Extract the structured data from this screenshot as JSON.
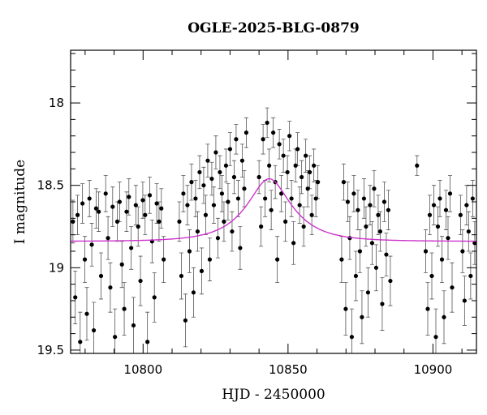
{
  "chart_data": {
    "type": "scatter",
    "title": "OGLE-2025-BLG-0879",
    "xlabel": "HJD - 2450000",
    "ylabel": "I magnitude",
    "xlim": [
      10775,
      10915
    ],
    "ylim": [
      19.52,
      17.68
    ],
    "y_inverted": true,
    "x_ticks": [
      10800,
      10850,
      10900
    ],
    "x_tick_labels": [
      "10800",
      "10850",
      "10900"
    ],
    "y_ticks": [
      18,
      18.5,
      19,
      19.5
    ],
    "y_tick_labels": [
      "18",
      "18.5",
      "19",
      "19.5"
    ],
    "grid": false,
    "legend": "none",
    "colors": {
      "points": "#000000",
      "model": "#cc33cc",
      "errorbars": "#555555"
    },
    "series": [
      {
        "type": "scatter-errorbars",
        "points": [
          [
            10775.8,
            18.72,
            0.13
          ],
          [
            10776.6,
            19.18,
            0.16
          ],
          [
            10777.4,
            18.68,
            0.12
          ],
          [
            10778.3,
            19.45,
            0.18
          ],
          [
            10779.1,
            18.61,
            0.12
          ],
          [
            10779.9,
            18.95,
            0.14
          ],
          [
            10780.6,
            19.28,
            0.16
          ],
          [
            10781.5,
            18.58,
            0.11
          ],
          [
            10782.3,
            18.86,
            0.13
          ],
          [
            10783.0,
            19.38,
            0.17
          ],
          [
            10783.8,
            18.64,
            0.12
          ],
          [
            10784.7,
            18.66,
            0.12
          ],
          [
            10785.5,
            19.05,
            0.14
          ],
          [
            10787.1,
            18.55,
            0.11
          ],
          [
            10787.9,
            18.82,
            0.13
          ],
          [
            10788.7,
            19.12,
            0.15
          ],
          [
            10789.5,
            18.63,
            0.12
          ],
          [
            10790.3,
            19.42,
            0.17
          ],
          [
            10791.1,
            18.72,
            0.12
          ],
          [
            10791.9,
            18.6,
            0.12
          ],
          [
            10792.7,
            18.98,
            0.14
          ],
          [
            10793.5,
            19.25,
            0.16
          ],
          [
            10794.3,
            18.66,
            0.12
          ],
          [
            10795.1,
            18.57,
            0.11
          ],
          [
            10795.9,
            18.88,
            0.13
          ],
          [
            10796.7,
            19.35,
            0.17
          ],
          [
            10797.5,
            18.62,
            0.12
          ],
          [
            10798.3,
            18.75,
            0.12
          ],
          [
            10799.1,
            19.08,
            0.15
          ],
          [
            10799.9,
            18.59,
            0.11
          ],
          [
            10800.7,
            18.68,
            0.12
          ],
          [
            10801.5,
            19.45,
            0.18
          ],
          [
            10802.3,
            18.56,
            0.11
          ],
          [
            10803.1,
            18.84,
            0.13
          ],
          [
            10803.9,
            19.18,
            0.15
          ],
          [
            10804.7,
            18.61,
            0.12
          ],
          [
            10805.5,
            18.72,
            0.12
          ],
          [
            10806.3,
            18.64,
            0.12
          ],
          [
            10807.1,
            18.95,
            0.14
          ],
          [
            10812.5,
            18.72,
            0.12
          ],
          [
            10813.2,
            19.05,
            0.14
          ],
          [
            10813.9,
            18.55,
            0.11
          ],
          [
            10814.6,
            19.32,
            0.16
          ],
          [
            10815.3,
            18.62,
            0.12
          ],
          [
            10816.0,
            18.9,
            0.13
          ],
          [
            10816.7,
            18.48,
            0.11
          ],
          [
            10817.4,
            19.15,
            0.15
          ],
          [
            10818.1,
            18.58,
            0.11
          ],
          [
            10818.8,
            18.78,
            0.12
          ],
          [
            10819.5,
            18.42,
            0.1
          ],
          [
            10820.2,
            19.02,
            0.14
          ],
          [
            10820.9,
            18.5,
            0.11
          ],
          [
            10821.6,
            18.68,
            0.12
          ],
          [
            10822.3,
            18.35,
            0.1
          ],
          [
            10823.0,
            18.95,
            0.13
          ],
          [
            10823.7,
            18.46,
            0.1
          ],
          [
            10824.4,
            18.62,
            0.11
          ],
          [
            10825.1,
            18.3,
            0.1
          ],
          [
            10825.8,
            18.82,
            0.12
          ],
          [
            10826.5,
            18.42,
            0.1
          ],
          [
            10827.2,
            18.55,
            0.11
          ],
          [
            10827.9,
            18.72,
            0.12
          ],
          [
            10828.6,
            18.38,
            0.1
          ],
          [
            10829.3,
            18.6,
            0.11
          ],
          [
            10830.0,
            18.28,
            0.1
          ],
          [
            10830.7,
            18.78,
            0.12
          ],
          [
            10831.4,
            18.45,
            0.1
          ],
          [
            10832.1,
            18.22,
            0.09
          ],
          [
            10832.8,
            18.58,
            0.11
          ],
          [
            10833.5,
            18.88,
            0.13
          ],
          [
            10834.2,
            18.35,
            0.1
          ],
          [
            10834.9,
            18.52,
            0.11
          ],
          [
            10835.6,
            18.18,
            0.09
          ],
          [
            10840.0,
            18.45,
            0.1
          ],
          [
            10840.7,
            18.75,
            0.12
          ],
          [
            10841.4,
            18.22,
            0.09
          ],
          [
            10842.1,
            18.58,
            0.11
          ],
          [
            10842.8,
            18.12,
            0.09
          ],
          [
            10843.5,
            18.38,
            0.1
          ],
          [
            10844.2,
            18.65,
            0.12
          ],
          [
            10844.9,
            18.18,
            0.09
          ],
          [
            10845.6,
            18.48,
            0.1
          ],
          [
            10846.3,
            18.95,
            0.14
          ],
          [
            10847.0,
            18.25,
            0.09
          ],
          [
            10847.7,
            18.55,
            0.11
          ],
          [
            10848.4,
            18.32,
            0.1
          ],
          [
            10849.1,
            18.72,
            0.12
          ],
          [
            10849.8,
            18.42,
            0.1
          ],
          [
            10850.5,
            18.2,
            0.09
          ],
          [
            10851.2,
            18.58,
            0.11
          ],
          [
            10851.9,
            18.85,
            0.13
          ],
          [
            10852.6,
            18.38,
            0.1
          ],
          [
            10853.3,
            18.28,
            0.1
          ],
          [
            10854.0,
            18.62,
            0.11
          ],
          [
            10854.7,
            18.45,
            0.1
          ],
          [
            10855.4,
            18.75,
            0.12
          ],
          [
            10856.1,
            18.32,
            0.1
          ],
          [
            10856.8,
            18.52,
            0.11
          ],
          [
            10857.5,
            18.42,
            0.1
          ],
          [
            10858.2,
            18.68,
            0.12
          ],
          [
            10858.9,
            18.38,
            0.1
          ],
          [
            10859.6,
            18.58,
            0.11
          ],
          [
            10860.3,
            18.48,
            0.1
          ],
          [
            10868.5,
            18.95,
            0.14
          ],
          [
            10869.2,
            18.48,
            0.11
          ],
          [
            10869.9,
            19.25,
            0.16
          ],
          [
            10870.6,
            18.6,
            0.12
          ],
          [
            10871.3,
            18.82,
            0.13
          ],
          [
            10872.0,
            19.42,
            0.17
          ],
          [
            10872.7,
            18.55,
            0.11
          ],
          [
            10873.4,
            19.05,
            0.15
          ],
          [
            10874.1,
            18.65,
            0.12
          ],
          [
            10874.8,
            18.9,
            0.13
          ],
          [
            10875.5,
            19.3,
            0.16
          ],
          [
            10876.2,
            18.58,
            0.12
          ],
          [
            10876.9,
            18.75,
            0.12
          ],
          [
            10877.6,
            19.15,
            0.15
          ],
          [
            10878.3,
            18.62,
            0.12
          ],
          [
            10879.0,
            18.85,
            0.13
          ],
          [
            10879.7,
            18.52,
            0.11
          ],
          [
            10880.4,
            19.0,
            0.14
          ],
          [
            10881.1,
            18.68,
            0.12
          ],
          [
            10881.8,
            18.78,
            0.12
          ],
          [
            10882.5,
            19.22,
            0.16
          ],
          [
            10883.2,
            18.6,
            0.12
          ],
          [
            10883.9,
            18.92,
            0.13
          ],
          [
            10884.6,
            18.65,
            0.12
          ],
          [
            10885.3,
            19.08,
            0.15
          ],
          [
            10894.5,
            18.38,
            0.06
          ],
          [
            10897.5,
            18.9,
            0.13
          ],
          [
            10898.2,
            19.25,
            0.16
          ],
          [
            10898.9,
            18.68,
            0.12
          ],
          [
            10899.6,
            19.05,
            0.14
          ],
          [
            10900.3,
            18.62,
            0.12
          ],
          [
            10901.0,
            19.42,
            0.17
          ],
          [
            10901.7,
            18.75,
            0.12
          ],
          [
            10902.4,
            18.58,
            0.11
          ],
          [
            10903.1,
            18.95,
            0.14
          ],
          [
            10903.8,
            19.3,
            0.16
          ],
          [
            10904.5,
            18.65,
            0.12
          ],
          [
            10905.2,
            18.82,
            0.13
          ],
          [
            10905.9,
            18.55,
            0.11
          ],
          [
            10906.6,
            19.12,
            0.15
          ],
          [
            10909.5,
            18.68,
            0.12
          ],
          [
            10910.2,
            18.9,
            0.13
          ],
          [
            10910.9,
            19.2,
            0.15
          ],
          [
            10911.6,
            18.62,
            0.12
          ],
          [
            10912.3,
            18.78,
            0.12
          ],
          [
            10913.0,
            19.05,
            0.14
          ],
          [
            10913.7,
            18.58,
            0.11
          ],
          [
            10914.4,
            18.85,
            0.13
          ]
        ]
      },
      {
        "type": "model-curve",
        "model": {
          "t0": 10843.5,
          "tE": 14,
          "u0": 0.45,
          "baseline": 18.84
        }
      }
    ]
  }
}
